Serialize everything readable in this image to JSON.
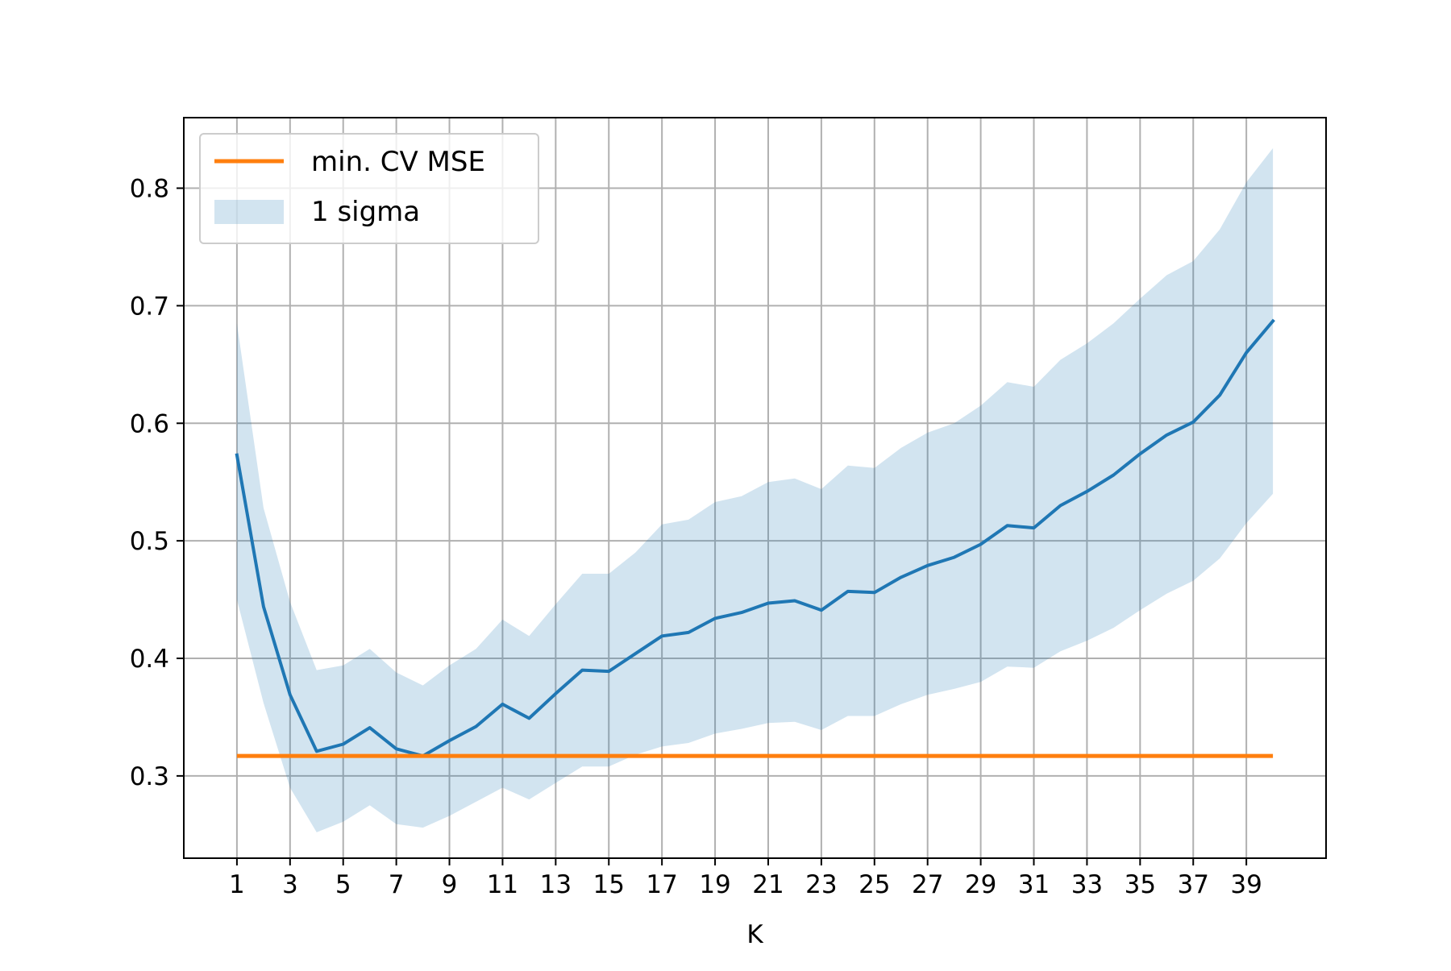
{
  "chart_data": {
    "type": "line",
    "title": "",
    "xlabel": "K",
    "ylabel": "",
    "xlim": [
      -1,
      42
    ],
    "ylim": [
      0.23,
      0.86
    ],
    "grid": true,
    "legend_position": "top-left",
    "x_ticks": [
      1,
      3,
      5,
      7,
      9,
      11,
      13,
      15,
      17,
      19,
      21,
      23,
      25,
      27,
      29,
      31,
      33,
      35,
      37,
      39
    ],
    "x_tick_labels": [
      "1",
      "3",
      "5",
      "7",
      "9",
      "11",
      "13",
      "15",
      "17",
      "19",
      "21",
      "23",
      "25",
      "27",
      "29",
      "31",
      "33",
      "35",
      "37",
      "39"
    ],
    "y_ticks": [
      0.3,
      0.4,
      0.5,
      0.6,
      0.7,
      0.8
    ],
    "y_tick_labels": [
      "0.3",
      "0.4",
      "0.5",
      "0.6",
      "0.7",
      "0.8"
    ],
    "x": [
      1,
      2,
      3,
      4,
      5,
      6,
      7,
      8,
      9,
      10,
      11,
      12,
      13,
      14,
      15,
      16,
      17,
      18,
      19,
      20,
      21,
      22,
      23,
      24,
      25,
      26,
      27,
      28,
      29,
      30,
      31,
      32,
      33,
      34,
      35,
      36,
      37,
      38,
      39,
      40
    ],
    "series": [
      {
        "values": [
          0.573,
          0.444,
          0.369,
          0.321,
          0.327,
          0.341,
          0.323,
          0.317,
          0.33,
          0.342,
          0.361,
          0.349,
          0.37,
          0.39,
          0.389,
          0.404,
          0.419,
          0.422,
          0.434,
          0.439,
          0.447,
          0.449,
          0.441,
          0.457,
          0.456,
          0.469,
          0.479,
          0.486,
          0.497,
          0.513,
          0.511,
          0.53,
          0.542,
          0.556,
          0.574,
          0.59,
          0.601,
          0.624,
          0.66,
          0.687
        ],
        "color": "#1f77b4"
      }
    ],
    "band": {
      "name": "1 sigma",
      "color": "#1f77b4",
      "opacity": 0.2,
      "upper": [
        0.685,
        0.528,
        0.448,
        0.39,
        0.394,
        0.408,
        0.388,
        0.377,
        0.394,
        0.408,
        0.433,
        0.419,
        0.446,
        0.472,
        0.472,
        0.49,
        0.514,
        0.518,
        0.533,
        0.538,
        0.55,
        0.553,
        0.544,
        0.564,
        0.562,
        0.579,
        0.592,
        0.6,
        0.615,
        0.635,
        0.631,
        0.654,
        0.668,
        0.685,
        0.706,
        0.726,
        0.738,
        0.765,
        0.805,
        0.834
      ],
      "lower": [
        0.45,
        0.362,
        0.29,
        0.252,
        0.261,
        0.275,
        0.259,
        0.256,
        0.266,
        0.278,
        0.29,
        0.28,
        0.294,
        0.308,
        0.308,
        0.318,
        0.325,
        0.328,
        0.336,
        0.34,
        0.345,
        0.346,
        0.339,
        0.351,
        0.351,
        0.361,
        0.369,
        0.374,
        0.38,
        0.393,
        0.392,
        0.406,
        0.415,
        0.426,
        0.441,
        0.455,
        0.466,
        0.485,
        0.515,
        0.54
      ]
    },
    "hline": {
      "name": "min. CV MSE",
      "value": 0.317,
      "x_start": 1,
      "x_end": 40,
      "color": "#ff7f0e"
    },
    "legend": [
      {
        "label": "min. CV MSE",
        "kind": "line",
        "color": "#ff7f0e"
      },
      {
        "label": "1 sigma",
        "kind": "patch",
        "color": "#1f77b4"
      }
    ]
  }
}
